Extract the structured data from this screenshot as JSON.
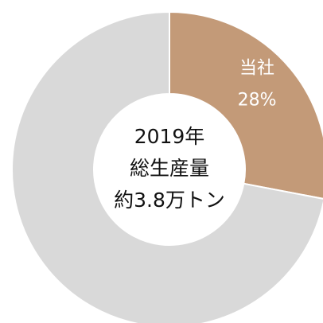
{
  "chart_data": {
    "type": "donut",
    "categories": [
      "当社",
      null
    ],
    "values": [
      28,
      72
    ],
    "value_labels": [
      "28%",
      null
    ],
    "colors": [
      "#c39a78",
      "#d9d9d9"
    ],
    "center_text": [
      "2019年",
      "総生産量",
      "約3.8万トン"
    ]
  }
}
